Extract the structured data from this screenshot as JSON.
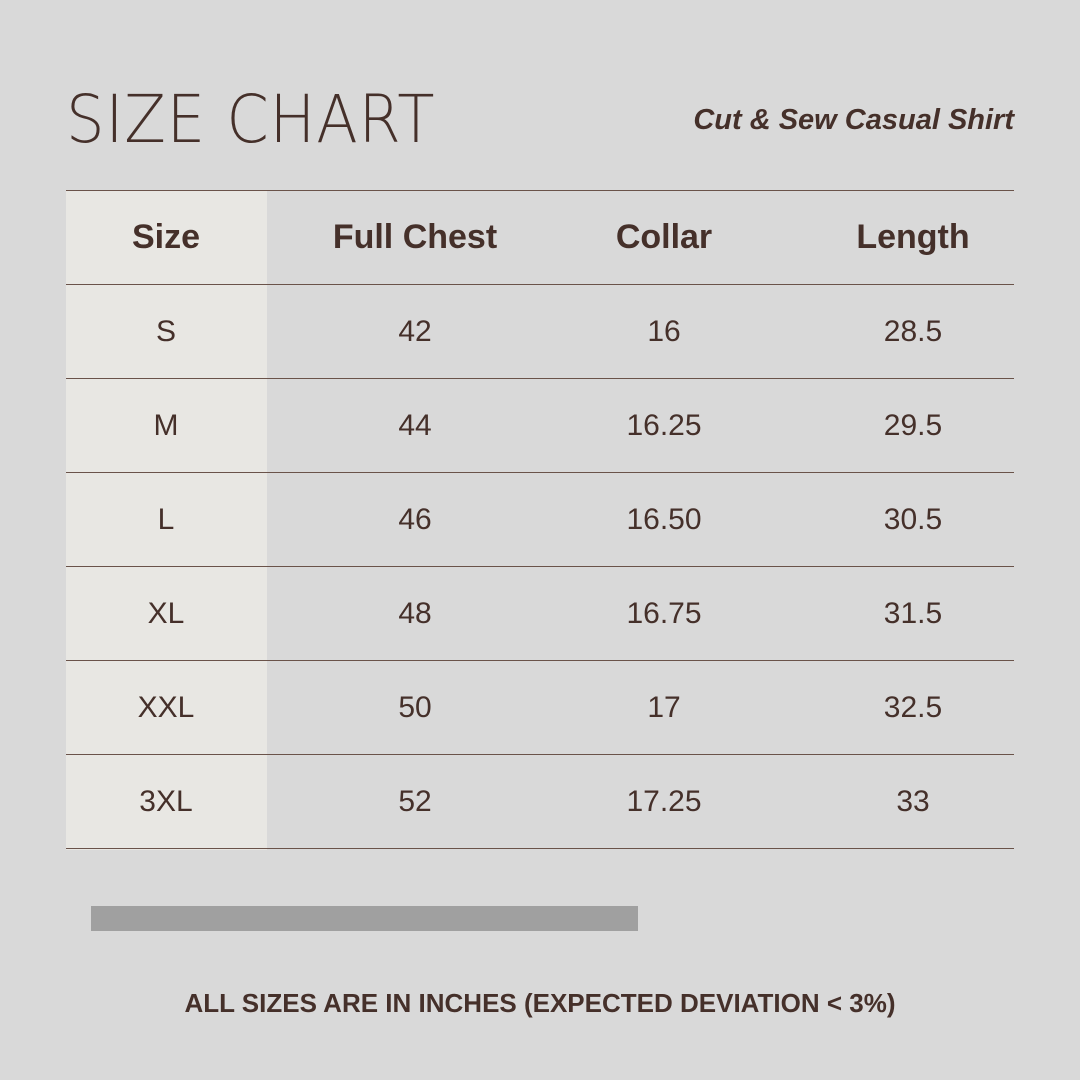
{
  "title": "SIZE CHART",
  "subtitle": "Cut & Sew Casual Shirt",
  "table": {
    "headers": [
      "Size",
      "Full Chest",
      "Collar",
      "Length"
    ],
    "rows": [
      [
        "S",
        "42",
        "16",
        "28.5"
      ],
      [
        "M",
        "44",
        "16.25",
        "29.5"
      ],
      [
        "L",
        "46",
        "16.50",
        "30.5"
      ],
      [
        "XL",
        "48",
        "16.75",
        "31.5"
      ],
      [
        "XXL",
        "50",
        "17",
        "32.5"
      ],
      [
        "3XL",
        "52",
        "17.25",
        "33"
      ]
    ]
  },
  "note": "ALL SIZES ARE IN INCHES (EXPECTED DEVIATION < 3%)",
  "colors": {
    "background": "#d9d9d9",
    "text": "#45302a",
    "first_column": "#e8e7e3",
    "bar": "#a0a0a0"
  }
}
